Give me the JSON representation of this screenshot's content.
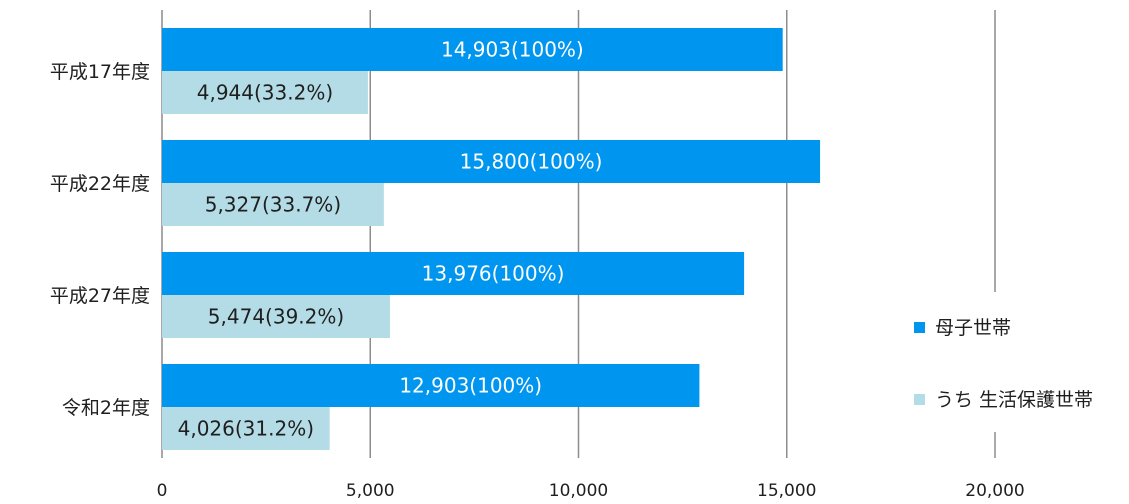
{
  "chart_data": {
    "type": "bar",
    "orientation": "horizontal",
    "categories": [
      "平成17年度",
      "平成22年度",
      "平成27年度",
      "令和2年度"
    ],
    "series": [
      {
        "name": "母子世帯",
        "color": "#0096f0",
        "label_color": "#ffffff",
        "values": [
          14903,
          15800,
          13976,
          12903
        ],
        "labels": [
          "14,903(100%)",
          "15,800(100%)",
          "13,976(100%)",
          "12,903(100%)"
        ]
      },
      {
        "name": "うち生活保護世帯",
        "color": "#b4dce6",
        "label_color": "#1f1f1f",
        "values": [
          4944,
          5327,
          5474,
          4026
        ],
        "labels": [
          "4,944(33.2%)",
          "5,327(33.7%)",
          "5,474(39.2%)",
          "4,026(31.2%)"
        ]
      }
    ],
    "xlim": [
      0,
      20000
    ],
    "xticks": [
      0,
      5000,
      10000,
      15000,
      20000
    ],
    "xtick_labels": [
      "0",
      "5,000",
      "10,000",
      "15,000",
      "20,000"
    ],
    "grid": "vertical",
    "legend": "right",
    "legend_labels": [
      "母子世帯",
      "うち 生活保護世帯"
    ],
    "title": "",
    "xlabel": "",
    "ylabel": ""
  }
}
